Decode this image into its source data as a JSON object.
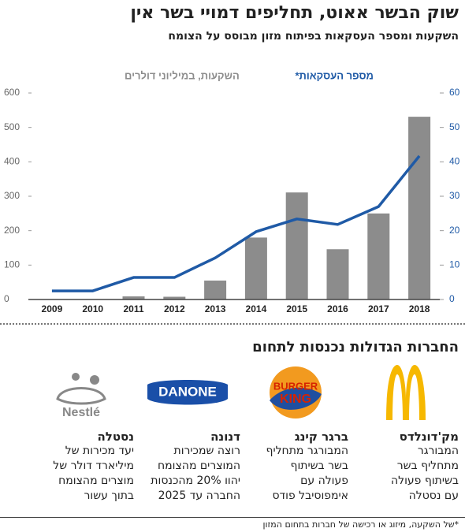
{
  "chart_data": {
    "type": "bar-line",
    "title": "שוק הבשר אאוט, תחליפים דמויי בשר אין",
    "subtitle": "השקעות ומספר העסקאות בפיתוח מזון מבוסס על הצומח",
    "y_label": "השקעות, במיליוני דולרים",
    "y2_label": "מספר העסקאות*",
    "categories": [
      "2009",
      "2010",
      "2011",
      "2012",
      "2013",
      "2014",
      "2015",
      "2016",
      "2017",
      "2018"
    ],
    "series": [
      {
        "name": "השקעות, במיליוני דולרים",
        "color": "#8c8c8c",
        "kind": "bar",
        "values": [
          0,
          0,
          9,
          8,
          55,
          180,
          311,
          146,
          250,
          531
        ]
      },
      {
        "name": "מספר העסקאות*",
        "color": "#1f5aa6",
        "kind": "line",
        "axis": "y2",
        "values": [
          2.5,
          2.5,
          6.4,
          6.4,
          12.1,
          19.7,
          23.4,
          21.8,
          27,
          41.7
        ]
      }
    ],
    "ylim": [
      0,
      600
    ],
    "yticks": [
      0,
      100,
      200,
      300,
      400,
      500,
      600
    ],
    "y2lim": [
      0,
      60
    ],
    "y2ticks": [
      0,
      10,
      20,
      30,
      40,
      50,
      60
    ],
    "grid": false
  },
  "companies_heading": "החברות הגדולות נכנסות לתחום",
  "companies": [
    {
      "name": "מק'דונלדס",
      "lines": [
        "המבורגר",
        "מתחליף בשר",
        "בשיתוף פעולה",
        "עם נסטלה"
      ]
    },
    {
      "name": "ברגר קינג",
      "logo": [
        "BURGER",
        "KING"
      ],
      "lines": [
        "המבורגר מתחליף",
        "בשר בשיתוף",
        "פעולה עם",
        "אימפוסיבל פודס"
      ]
    },
    {
      "name": "דנונה",
      "logo": [
        "DANONE"
      ],
      "lines": [
        "רוצה שמכירות",
        "המוצרים מהצומח",
        "יהוו 20% מהכנסות",
        "החברה עד 2025"
      ]
    },
    {
      "name": "נסטלה",
      "logo": [
        "Nestlé"
      ],
      "lines": [
        "יעד מכירות של",
        "מיליארד דולר של",
        "מוצרים מהצומח",
        "בתוך עשור"
      ]
    }
  ],
  "footnote": "*של השקעה, מיזוג או רכישה של חברות בתחום המזון"
}
